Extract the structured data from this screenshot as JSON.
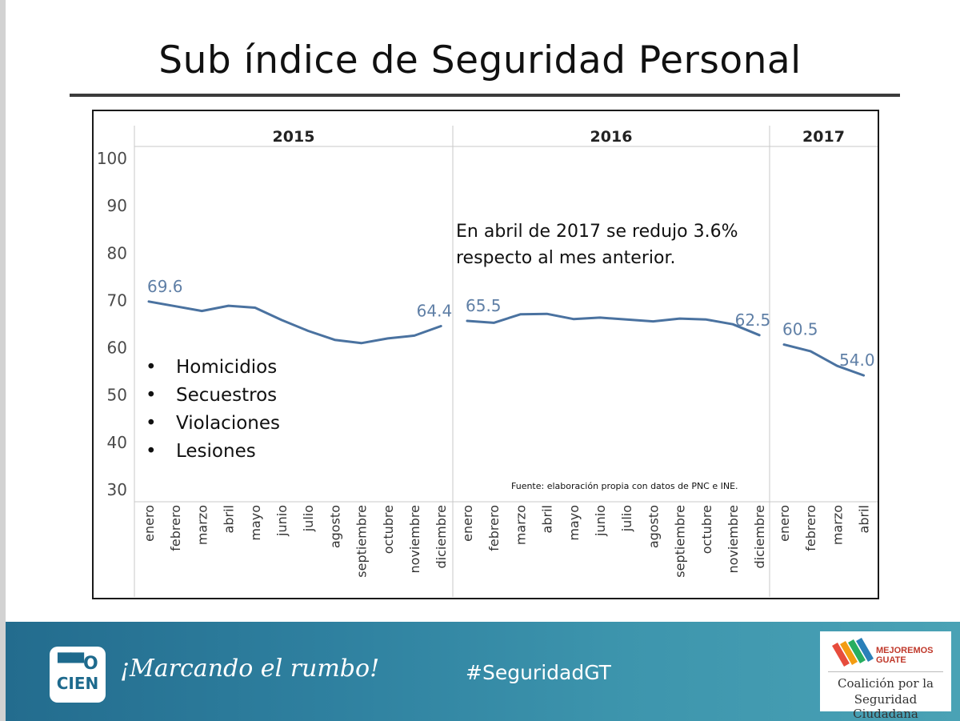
{
  "slide": {
    "title": "Sub índice de Seguridad Personal"
  },
  "chart_data": {
    "type": "line",
    "title": "",
    "ylim": [
      30,
      100
    ],
    "yticks": [
      30,
      40,
      50,
      60,
      70,
      80,
      90,
      100
    ],
    "panels": [
      {
        "year": "2015",
        "months": [
          "enero",
          "febrero",
          "marzo",
          "abril",
          "mayo",
          "junio",
          "julio",
          "agosto",
          "septiembre",
          "octubre",
          "noviembre",
          "diciembre"
        ],
        "values": [
          69.6,
          68.6,
          67.6,
          68.7,
          68.3,
          65.7,
          63.4,
          61.5,
          60.8,
          61.8,
          62.4,
          64.4
        ]
      },
      {
        "year": "2016",
        "months": [
          "enero",
          "febrero",
          "marzo",
          "abril",
          "mayo",
          "junio",
          "julio",
          "agosto",
          "septiembre",
          "octubre",
          "noviembre",
          "diciembre"
        ],
        "values": [
          65.5,
          65.1,
          66.9,
          67.0,
          65.9,
          66.2,
          65.8,
          65.4,
          66.0,
          65.8,
          64.8,
          62.5
        ]
      },
      {
        "year": "2017",
        "months": [
          "enero",
          "febrero",
          "marzo",
          "abril"
        ],
        "values": [
          60.5,
          59.1,
          56.0,
          54.0
        ]
      }
    ],
    "data_labels": [
      {
        "panel": 0,
        "index": 0,
        "text": "69.6"
      },
      {
        "panel": 0,
        "index": 11,
        "text": "64.4"
      },
      {
        "panel": 1,
        "index": 0,
        "text": "65.5"
      },
      {
        "panel": 1,
        "index": 11,
        "text": "62.5"
      },
      {
        "panel": 2,
        "index": 0,
        "text": "60.5"
      },
      {
        "panel": 2,
        "index": 3,
        "text": "54.0"
      }
    ],
    "line_color": "#4a72a0",
    "label_color": "#5f7fa6"
  },
  "annotation": {
    "line1": "En abril de 2017 se redujo 3.6%",
    "line2": "respecto al mes anterior."
  },
  "components": [
    "Homicidios",
    "Secuestros",
    "Violaciones",
    "Lesiones"
  ],
  "source": "Fuente: elaboración propia con datos de PNC e INE.",
  "footer": {
    "logo_top": "▀▀O",
    "logo_bottom": "CIEN",
    "slogan": "¡Marcando el rumbo!",
    "hashtag": "#SeguridadGT",
    "partner_brand_1": "MEJOREMOS",
    "partner_brand_2": "GUATE",
    "partner_line1": "Coalición por la",
    "partner_line2": "Seguridad Ciudadana"
  }
}
